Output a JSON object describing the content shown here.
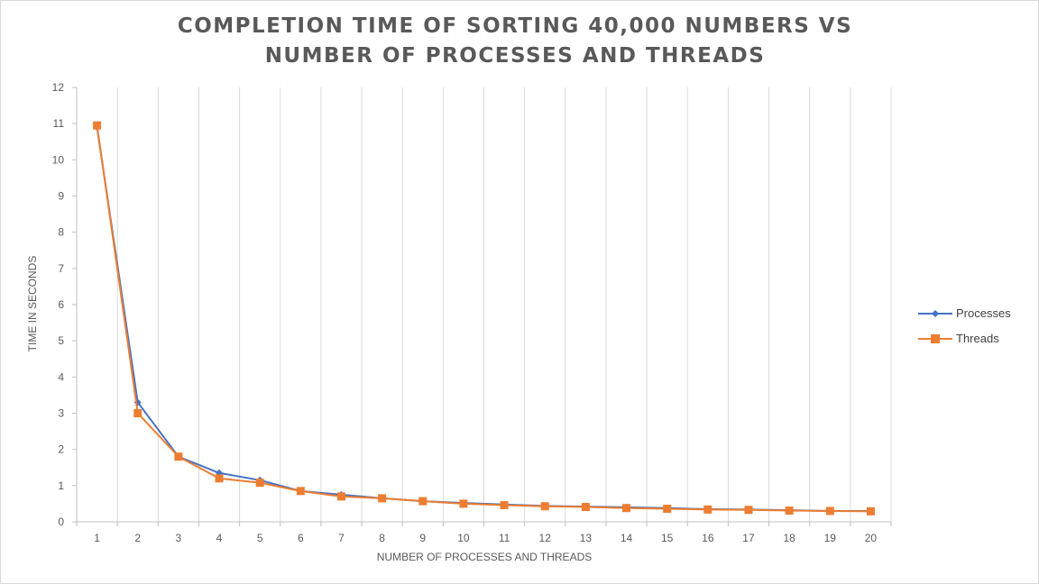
{
  "chart_data": {
    "type": "line",
    "title_lines": [
      "COMPLETION TIME OF SORTING 40,000 NUMBERS VS",
      "NUMBER OF PROCESSES AND THREADS"
    ],
    "xlabel": "NUMBER OF PROCESSES AND THREADS",
    "ylabel": "TIME IN SECONDS",
    "categories": [
      "1",
      "2",
      "3",
      "4",
      "5",
      "6",
      "7",
      "8",
      "9",
      "10",
      "11",
      "12",
      "13",
      "14",
      "15",
      "16",
      "17",
      "18",
      "19",
      "20"
    ],
    "ylim": [
      0,
      12
    ],
    "yticks": [
      "0",
      "1",
      "2",
      "3",
      "4",
      "5",
      "6",
      "7",
      "8",
      "9",
      "10",
      "11",
      "12"
    ],
    "grid": "vertical",
    "legend_position": "right",
    "series": [
      {
        "name": "Processes",
        "color": "#4472c4",
        "marker": "diamond",
        "values": [
          10.9,
          3.3,
          1.8,
          1.35,
          1.15,
          0.85,
          0.75,
          0.65,
          0.57,
          0.52,
          0.48,
          0.44,
          0.42,
          0.4,
          0.38,
          0.35,
          0.34,
          0.32,
          0.3,
          0.3
        ]
      },
      {
        "name": "Threads",
        "color": "#ed7d31",
        "marker": "square",
        "values": [
          10.95,
          3.0,
          1.8,
          1.2,
          1.08,
          0.85,
          0.7,
          0.65,
          0.57,
          0.5,
          0.46,
          0.43,
          0.41,
          0.38,
          0.36,
          0.34,
          0.33,
          0.31,
          0.3,
          0.29
        ]
      }
    ]
  }
}
